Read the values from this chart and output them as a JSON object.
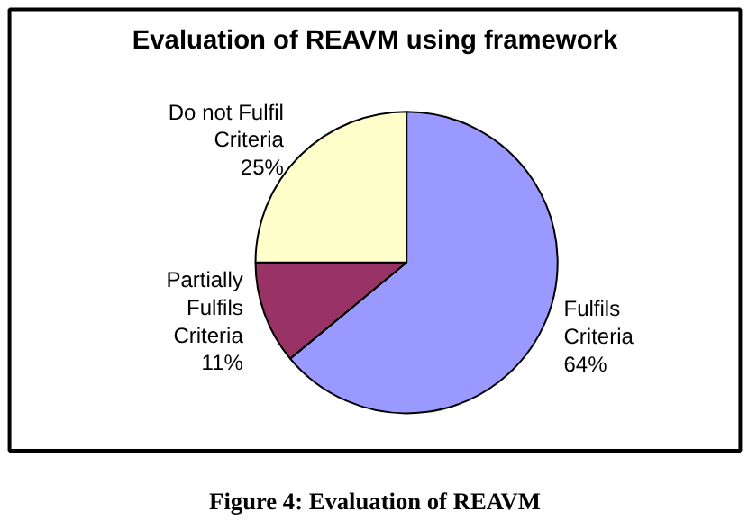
{
  "chart_data": {
    "type": "pie",
    "title": "Evaluation of REAVM using framework",
    "categories": [
      "Fulfils Criteria",
      "Partially Fulfils Criteria",
      "Do not Fulfil Criteria"
    ],
    "values": [
      64,
      11,
      25
    ],
    "colors": [
      "#9999ff",
      "#993366",
      "#ffffcc"
    ],
    "value_labels": [
      "64%",
      "11%",
      "25%"
    ],
    "annotations": [
      "Figure 4: Evaluation of REAVM"
    ]
  }
}
